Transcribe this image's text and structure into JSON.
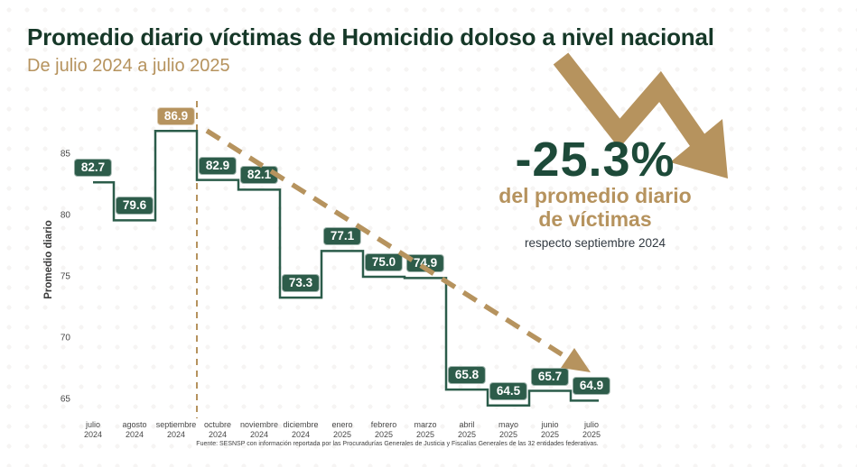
{
  "header": {
    "title": "Promedio diario víctimas de Homicidio doloso a nivel nacional",
    "subtitle": "De julio 2024 a julio 2025"
  },
  "callout": {
    "percent": "-25.3%",
    "line1": "del promedio diario",
    "line2": "de víctimas",
    "note": "respecto septiembre 2024"
  },
  "footer": {
    "source": "Fuente: SESNSP con información reportada por las Procuradurías Generales de Justicia y Fiscalías Generales de las 32 entidades federativas."
  },
  "colors": {
    "title_green": "#163828",
    "accent_green": "#1d4a39",
    "line_green": "#2b5c4a",
    "box_green": "#2d5c4a",
    "tan": "#b6935e",
    "axis_text": "#474747"
  },
  "chart_data": {
    "type": "line",
    "subtype": "step",
    "title": "Promedio diario víctimas de Homicidio doloso a nivel nacional",
    "xlabel": "",
    "ylabel": "Promedio diario",
    "ylim": [
      63,
      88
    ],
    "y_ticks": [
      85,
      80,
      75,
      70,
      65
    ],
    "grid": false,
    "legend": "none",
    "categories": [
      "julio 2024",
      "agosto 2024",
      "septiembre 2024",
      "octubre 2024",
      "noviembre 2024",
      "diciembre 2024",
      "enero 2025",
      "febrero 2025",
      "marzo 2025",
      "abril 2025",
      "mayo 2025",
      "junio 2025",
      "julio 2025"
    ],
    "values": [
      82.7,
      79.6,
      86.9,
      82.9,
      82.1,
      73.3,
      77.1,
      75.0,
      74.9,
      65.8,
      64.5,
      65.7,
      64.9
    ],
    "highlight_index": 2,
    "annotations": {
      "peak_value_label_color": "tan highlight on septiembre 2024 (86.9)",
      "vertical_dashed_line_at": "septiembre 2024 / octubre 2024 boundary",
      "trend_arrow": "dashed tan arrow from septiembre 2024 peak down to julio 2025"
    }
  }
}
